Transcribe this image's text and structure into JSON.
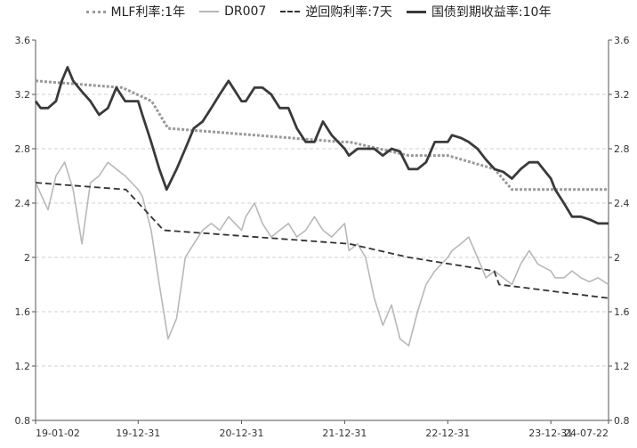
{
  "chart_data": {
    "type": "line",
    "title": "",
    "xlabel": "",
    "ylabel": "",
    "ylim": [
      0.8,
      3.6
    ],
    "y_ticks": [
      "0.8",
      "1.2",
      "1.6",
      "2",
      "2.4",
      "2.8",
      "3.2",
      "3.6"
    ],
    "x_ticks": [
      "19-01-02",
      "19-12-31",
      "20-12-31",
      "21-12-31",
      "22-12-31",
      "23-12-31",
      "24-07-22"
    ],
    "grid": "horizontal dashed",
    "legend_position": "top",
    "series": [
      {
        "name": "MLF利率:1年",
        "style": "dotted",
        "color": "#9a9a9a",
        "points": [
          [
            "19-01-02",
            3.3
          ],
          [
            "19-11-05",
            3.25
          ],
          [
            "20-02-17",
            3.15
          ],
          [
            "20-04-15",
            2.95
          ],
          [
            "21-12-20",
            2.85
          ],
          [
            "22-01-17",
            2.85
          ],
          [
            "22-08-15",
            2.75
          ],
          [
            "22-12-31",
            2.75
          ],
          [
            "23-06-15",
            2.65
          ],
          [
            "23-08-15",
            2.5
          ],
          [
            "24-07-22",
            2.5
          ]
        ]
      },
      {
        "name": "DR007",
        "style": "solid-thin",
        "color": "#b8b8b8",
        "points": [
          [
            "19-01-02",
            2.55
          ],
          [
            "19-02-15",
            2.35
          ],
          [
            "19-03-15",
            2.6
          ],
          [
            "19-04-15",
            2.7
          ],
          [
            "19-05-15",
            2.5
          ],
          [
            "19-06-15",
            2.1
          ],
          [
            "19-07-15",
            2.55
          ],
          [
            "19-08-15",
            2.6
          ],
          [
            "19-09-15",
            2.7
          ],
          [
            "19-10-15",
            2.65
          ],
          [
            "19-11-15",
            2.6
          ],
          [
            "19-12-31",
            2.5
          ],
          [
            "20-01-15",
            2.45
          ],
          [
            "20-02-15",
            2.2
          ],
          [
            "20-03-15",
            1.8
          ],
          [
            "20-04-15",
            1.4
          ],
          [
            "20-05-15",
            1.55
          ],
          [
            "20-06-15",
            2.0
          ],
          [
            "20-07-15",
            2.1
          ],
          [
            "20-08-15",
            2.2
          ],
          [
            "20-09-15",
            2.25
          ],
          [
            "20-10-15",
            2.2
          ],
          [
            "20-11-15",
            2.3
          ],
          [
            "20-12-31",
            2.2
          ],
          [
            "21-01-15",
            2.3
          ],
          [
            "21-02-15",
            2.4
          ],
          [
            "21-03-15",
            2.25
          ],
          [
            "21-04-15",
            2.15
          ],
          [
            "21-05-15",
            2.2
          ],
          [
            "21-06-15",
            2.25
          ],
          [
            "21-07-15",
            2.15
          ],
          [
            "21-08-15",
            2.2
          ],
          [
            "21-09-15",
            2.3
          ],
          [
            "21-10-15",
            2.2
          ],
          [
            "21-11-15",
            2.15
          ],
          [
            "21-12-31",
            2.25
          ],
          [
            "22-01-15",
            2.05
          ],
          [
            "22-02-15",
            2.1
          ],
          [
            "22-03-15",
            2.0
          ],
          [
            "22-04-15",
            1.7
          ],
          [
            "22-05-15",
            1.5
          ],
          [
            "22-06-15",
            1.65
          ],
          [
            "22-07-15",
            1.4
          ],
          [
            "22-08-15",
            1.35
          ],
          [
            "22-09-15",
            1.6
          ],
          [
            "22-10-15",
            1.8
          ],
          [
            "22-11-15",
            1.9
          ],
          [
            "22-12-31",
            2.0
          ],
          [
            "23-01-15",
            2.05
          ],
          [
            "23-02-15",
            2.1
          ],
          [
            "23-03-15",
            2.15
          ],
          [
            "23-04-15",
            2.0
          ],
          [
            "23-05-15",
            1.85
          ],
          [
            "23-06-15",
            1.9
          ],
          [
            "23-07-15",
            1.85
          ],
          [
            "23-08-15",
            1.8
          ],
          [
            "23-09-15",
            1.95
          ],
          [
            "23-10-15",
            2.05
          ],
          [
            "23-11-15",
            1.95
          ],
          [
            "23-12-31",
            1.9
          ],
          [
            "24-01-15",
            1.85
          ],
          [
            "24-02-15",
            1.85
          ],
          [
            "24-03-15",
            1.9
          ],
          [
            "24-04-15",
            1.85
          ],
          [
            "24-05-15",
            1.82
          ],
          [
            "24-06-15",
            1.85
          ],
          [
            "24-07-22",
            1.8
          ]
        ]
      },
      {
        "name": "逆回购利率:7天",
        "style": "dashed",
        "color": "#333333",
        "points": [
          [
            "19-01-02",
            2.55
          ],
          [
            "19-11-18",
            2.5
          ],
          [
            "20-03-30",
            2.2
          ],
          [
            "22-01-17",
            2.1
          ],
          [
            "22-08-15",
            2.0
          ],
          [
            "23-06-13",
            1.9
          ],
          [
            "23-07-01",
            1.8
          ],
          [
            "24-07-22",
            1.7
          ]
        ]
      },
      {
        "name": "国债到期收益率:10年",
        "style": "solid-thick",
        "color": "#3a3a3a",
        "points": [
          [
            "19-01-02",
            3.15
          ],
          [
            "19-01-20",
            3.1
          ],
          [
            "19-02-15",
            3.1
          ],
          [
            "19-03-15",
            3.15
          ],
          [
            "19-04-05",
            3.3
          ],
          [
            "19-04-25",
            3.4
          ],
          [
            "19-05-15",
            3.3
          ],
          [
            "19-06-15",
            3.22
          ],
          [
            "19-07-15",
            3.15
          ],
          [
            "19-08-15",
            3.05
          ],
          [
            "19-09-15",
            3.1
          ],
          [
            "19-10-15",
            3.25
          ],
          [
            "19-11-15",
            3.15
          ],
          [
            "19-12-31",
            3.15
          ],
          [
            "20-01-15",
            3.05
          ],
          [
            "20-02-15",
            2.85
          ],
          [
            "20-03-15",
            2.65
          ],
          [
            "20-04-10",
            2.5
          ],
          [
            "20-05-15",
            2.65
          ],
          [
            "20-06-15",
            2.8
          ],
          [
            "20-07-15",
            2.95
          ],
          [
            "20-08-15",
            3.0
          ],
          [
            "20-09-15",
            3.1
          ],
          [
            "20-10-15",
            3.2
          ],
          [
            "20-11-15",
            3.3
          ],
          [
            "20-12-31",
            3.15
          ],
          [
            "21-01-15",
            3.15
          ],
          [
            "21-02-15",
            3.25
          ],
          [
            "21-03-15",
            3.25
          ],
          [
            "21-04-15",
            3.2
          ],
          [
            "21-05-15",
            3.1
          ],
          [
            "21-06-15",
            3.1
          ],
          [
            "21-07-15",
            2.95
          ],
          [
            "21-08-15",
            2.85
          ],
          [
            "21-09-15",
            2.85
          ],
          [
            "21-10-15",
            3.0
          ],
          [
            "21-11-15",
            2.9
          ],
          [
            "21-12-31",
            2.8
          ],
          [
            "22-01-15",
            2.75
          ],
          [
            "22-02-15",
            2.8
          ],
          [
            "22-03-15",
            2.8
          ],
          [
            "22-04-15",
            2.8
          ],
          [
            "22-05-15",
            2.75
          ],
          [
            "22-06-15",
            2.8
          ],
          [
            "22-07-15",
            2.78
          ],
          [
            "22-08-15",
            2.65
          ],
          [
            "22-09-15",
            2.65
          ],
          [
            "22-10-15",
            2.7
          ],
          [
            "22-11-15",
            2.85
          ],
          [
            "22-12-31",
            2.85
          ],
          [
            "23-01-15",
            2.9
          ],
          [
            "23-02-15",
            2.88
          ],
          [
            "23-03-15",
            2.85
          ],
          [
            "23-04-15",
            2.8
          ],
          [
            "23-05-15",
            2.72
          ],
          [
            "23-06-15",
            2.65
          ],
          [
            "23-07-15",
            2.63
          ],
          [
            "23-08-15",
            2.58
          ],
          [
            "23-09-15",
            2.65
          ],
          [
            "23-10-15",
            2.7
          ],
          [
            "23-11-15",
            2.7
          ],
          [
            "23-12-31",
            2.58
          ],
          [
            "24-01-15",
            2.5
          ],
          [
            "24-02-15",
            2.4
          ],
          [
            "24-03-15",
            2.3
          ],
          [
            "24-04-15",
            2.3
          ],
          [
            "24-05-15",
            2.28
          ],
          [
            "24-06-15",
            2.25
          ],
          [
            "24-07-22",
            2.25
          ]
        ]
      }
    ]
  }
}
